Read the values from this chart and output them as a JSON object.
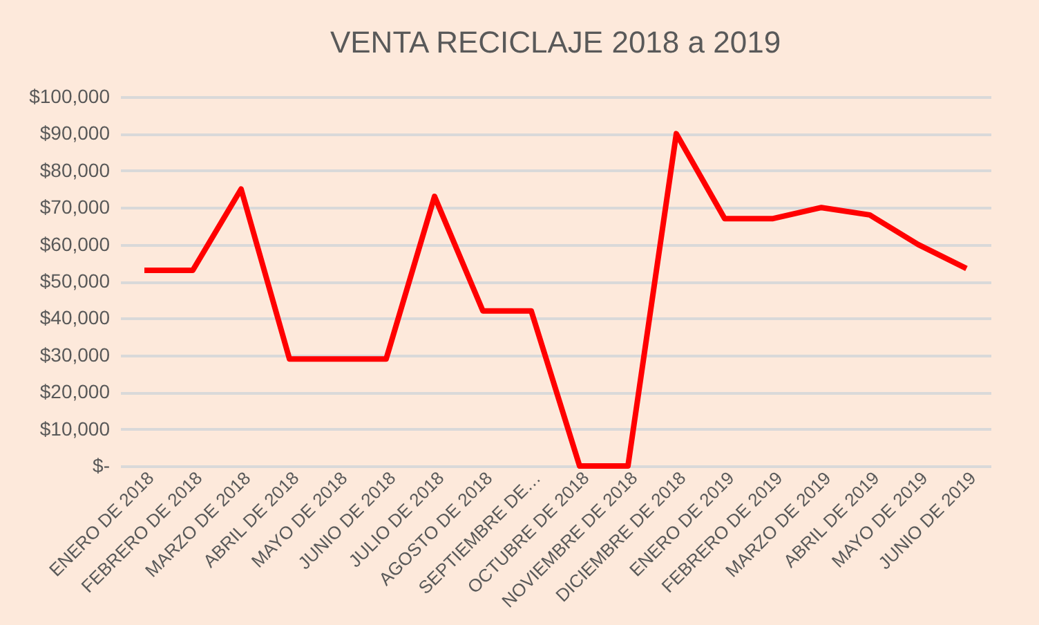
{
  "chart_data": {
    "type": "line",
    "title": "VENTA RECICLAJE 2018 a 2019",
    "categories": [
      "ENERO DE 2018",
      "FEBRERO DE 2018",
      "MARZO DE 2018",
      "ABRIL DE 2018",
      "MAYO DE 2018",
      "JUNIO DE 2018",
      "JULIO DE 2018",
      "AGOSTO DE 2018",
      "SEPTIEMBRE DE…",
      "OCTUBRE DE 2018",
      "NOVIEMBRE DE 2018",
      "DICIEMBRE DE 2018",
      "ENERO DE 2019",
      "FEBRERO DE 2019",
      "MARZO DE 2019",
      "ABRIL DE 2019",
      "MAYO DE 2019",
      "JUNIO DE 2019"
    ],
    "series": [
      {
        "color": "#ff0000",
        "values": [
          53000,
          53000,
          75000,
          29000,
          29000,
          29000,
          73000,
          42000,
          42000,
          0,
          0,
          90000,
          67000,
          67000,
          70000,
          68000,
          60000,
          53500
        ]
      }
    ],
    "ylim": [
      0,
      100000
    ],
    "yticks": [
      {
        "value": 0,
        "label": "$-"
      },
      {
        "value": 10000,
        "label": "$10,000"
      },
      {
        "value": 20000,
        "label": "$20,000"
      },
      {
        "value": 30000,
        "label": "$30,000"
      },
      {
        "value": 40000,
        "label": "$40,000"
      },
      {
        "value": 50000,
        "label": "$50,000"
      },
      {
        "value": 60000,
        "label": "$60,000"
      },
      {
        "value": 70000,
        "label": "$70,000"
      },
      {
        "value": 80000,
        "label": "$80,000"
      },
      {
        "value": 90000,
        "label": "$90,000"
      },
      {
        "value": 100000,
        "label": "$100,000"
      }
    ],
    "grid": "y",
    "marker": "none",
    "line_style": "solid"
  }
}
